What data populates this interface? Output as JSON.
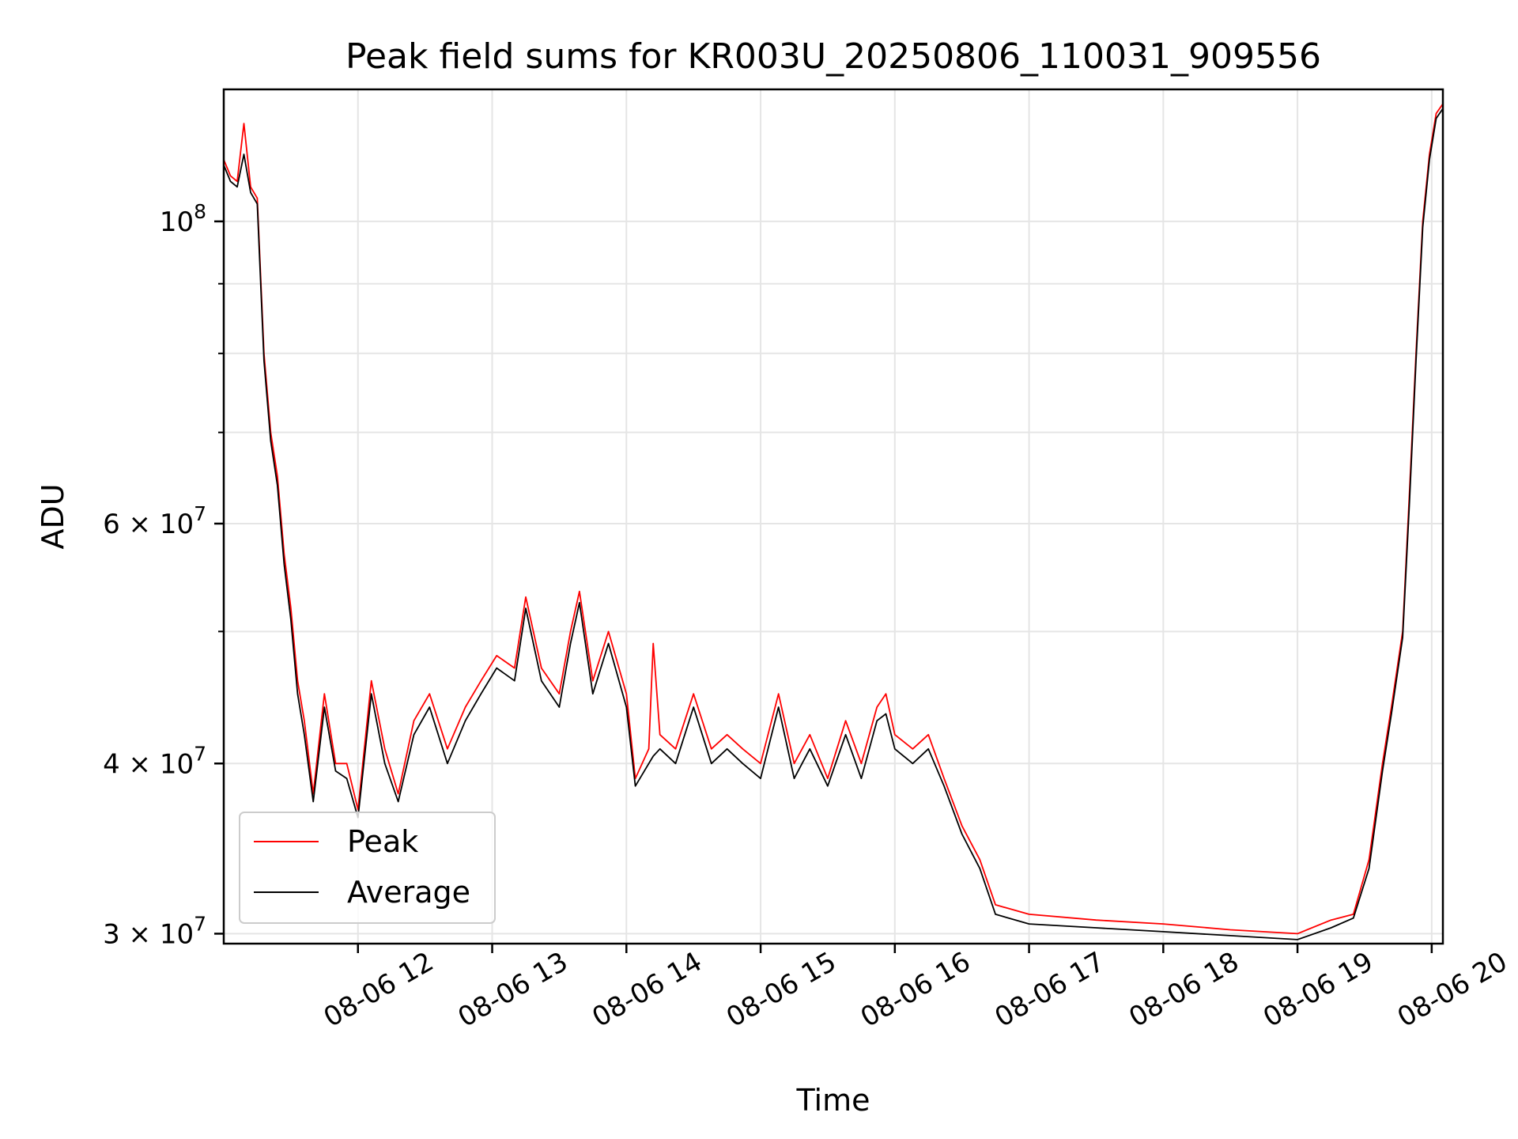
{
  "chart_data": {
    "type": "line",
    "title": "Peak field sums for KR003U_20250806_110031_909556",
    "xlabel": "Time",
    "ylabel": "ADU",
    "y_scale": "log",
    "x_range": [
      "2025-08-06 11:00",
      "2025-08-06 20:05"
    ],
    "ylim": [
      29500000,
      125000000
    ],
    "grid": true,
    "legend_position": "lower-left",
    "x_tick_labels": [
      "08-06 12",
      "08-06 13",
      "08-06 14",
      "08-06 15",
      "08-06 16",
      "08-06 17",
      "08-06 18",
      "08-06 19",
      "08-06 20"
    ],
    "x_ticks": [
      "2025-08-06 12:00",
      "2025-08-06 13:00",
      "2025-08-06 14:00",
      "2025-08-06 15:00",
      "2025-08-06 16:00",
      "2025-08-06 17:00",
      "2025-08-06 18:00",
      "2025-08-06 19:00",
      "2025-08-06 20:00"
    ],
    "y_ticks": [
      {
        "value": 100000000,
        "base": "10",
        "exp": "8"
      },
      {
        "value": 60000000,
        "mant": "6",
        "base": "10",
        "exp": "7"
      },
      {
        "value": 40000000,
        "mant": "4",
        "base": "10",
        "exp": "7"
      },
      {
        "value": 30000000,
        "mant": "3",
        "base": "10",
        "exp": "7"
      }
    ],
    "y_minor_ticks": [
      50000000,
      70000000,
      80000000,
      90000000
    ],
    "series": [
      {
        "name": "Peak",
        "color": "#ff0000",
        "points": [
          [
            "2025-08-06 11:00",
            111000000
          ],
          [
            "2025-08-06 11:03",
            108000000
          ],
          [
            "2025-08-06 11:06",
            107000000
          ],
          [
            "2025-08-06 11:09",
            118000000
          ],
          [
            "2025-08-06 11:12",
            106000000
          ],
          [
            "2025-08-06 11:15",
            104000000
          ],
          [
            "2025-08-06 11:18",
            80000000
          ],
          [
            "2025-08-06 11:21",
            70000000
          ],
          [
            "2025-08-06 11:24",
            65000000
          ],
          [
            "2025-08-06 11:27",
            57000000
          ],
          [
            "2025-08-06 11:30",
            52000000
          ],
          [
            "2025-08-06 11:33",
            46000000
          ],
          [
            "2025-08-06 11:36",
            43000000
          ],
          [
            "2025-08-06 11:40",
            38000000
          ],
          [
            "2025-08-06 11:45",
            45000000
          ],
          [
            "2025-08-06 11:50",
            40000000
          ],
          [
            "2025-08-06 11:55",
            40000000
          ],
          [
            "2025-08-06 12:00",
            37000000
          ],
          [
            "2025-08-06 12:06",
            46000000
          ],
          [
            "2025-08-06 12:12",
            41000000
          ],
          [
            "2025-08-06 12:18",
            38000000
          ],
          [
            "2025-08-06 12:25",
            43000000
          ],
          [
            "2025-08-06 12:32",
            45000000
          ],
          [
            "2025-08-06 12:40",
            41000000
          ],
          [
            "2025-08-06 12:48",
            44000000
          ],
          [
            "2025-08-06 12:55",
            46000000
          ],
          [
            "2025-08-06 13:02",
            48000000
          ],
          [
            "2025-08-06 13:10",
            47000000
          ],
          [
            "2025-08-06 13:15",
            53000000
          ],
          [
            "2025-08-06 13:22",
            47000000
          ],
          [
            "2025-08-06 13:30",
            45000000
          ],
          [
            "2025-08-06 13:35",
            50000000
          ],
          [
            "2025-08-06 13:39",
            53500000
          ],
          [
            "2025-08-06 13:45",
            46000000
          ],
          [
            "2025-08-06 13:52",
            50000000
          ],
          [
            "2025-08-06 14:00",
            45000000
          ],
          [
            "2025-08-06 14:04",
            39000000
          ],
          [
            "2025-08-06 14:10",
            41000000
          ],
          [
            "2025-08-06 14:12",
            49000000
          ],
          [
            "2025-08-06 14:15",
            42000000
          ],
          [
            "2025-08-06 14:22",
            41000000
          ],
          [
            "2025-08-06 14:30",
            45000000
          ],
          [
            "2025-08-06 14:38",
            41000000
          ],
          [
            "2025-08-06 14:45",
            42000000
          ],
          [
            "2025-08-06 14:52",
            41000000
          ],
          [
            "2025-08-06 15:00",
            40000000
          ],
          [
            "2025-08-06 15:08",
            45000000
          ],
          [
            "2025-08-06 15:15",
            40000000
          ],
          [
            "2025-08-06 15:22",
            42000000
          ],
          [
            "2025-08-06 15:30",
            39000000
          ],
          [
            "2025-08-06 15:38",
            43000000
          ],
          [
            "2025-08-06 15:45",
            40000000
          ],
          [
            "2025-08-06 15:52",
            44000000
          ],
          [
            "2025-08-06 15:56",
            45000000
          ],
          [
            "2025-08-06 16:00",
            42000000
          ],
          [
            "2025-08-06 16:08",
            41000000
          ],
          [
            "2025-08-06 16:15",
            42000000
          ],
          [
            "2025-08-06 16:22",
            39000000
          ],
          [
            "2025-08-06 16:30",
            36000000
          ],
          [
            "2025-08-06 16:38",
            34000000
          ],
          [
            "2025-08-06 16:45",
            31500000
          ],
          [
            "2025-08-06 17:00",
            31000000
          ],
          [
            "2025-08-06 17:30",
            30700000
          ],
          [
            "2025-08-06 18:00",
            30500000
          ],
          [
            "2025-08-06 18:30",
            30200000
          ],
          [
            "2025-08-06 19:00",
            30000000
          ],
          [
            "2025-08-06 19:15",
            30700000
          ],
          [
            "2025-08-06 19:25",
            31000000
          ],
          [
            "2025-08-06 19:32",
            34000000
          ],
          [
            "2025-08-06 19:38",
            40000000
          ],
          [
            "2025-08-06 19:42",
            44000000
          ],
          [
            "2025-08-06 19:47",
            50000000
          ],
          [
            "2025-08-06 19:50",
            63000000
          ],
          [
            "2025-08-06 19:53",
            80000000
          ],
          [
            "2025-08-06 19:56",
            100000000
          ],
          [
            "2025-08-06 19:59",
            112000000
          ],
          [
            "2025-08-06 20:02",
            120000000
          ],
          [
            "2025-08-06 20:05",
            122000000
          ]
        ]
      },
      {
        "name": "Average",
        "color": "#000000",
        "points": [
          [
            "2025-08-06 11:00",
            110000000
          ],
          [
            "2025-08-06 11:03",
            107000000
          ],
          [
            "2025-08-06 11:06",
            106000000
          ],
          [
            "2025-08-06 11:09",
            112000000
          ],
          [
            "2025-08-06 11:12",
            105000000
          ],
          [
            "2025-08-06 11:15",
            103000000
          ],
          [
            "2025-08-06 11:18",
            79000000
          ],
          [
            "2025-08-06 11:21",
            69000000
          ],
          [
            "2025-08-06 11:24",
            64000000
          ],
          [
            "2025-08-06 11:27",
            56000000
          ],
          [
            "2025-08-06 11:30",
            51000000
          ],
          [
            "2025-08-06 11:33",
            45000000
          ],
          [
            "2025-08-06 11:36",
            42000000
          ],
          [
            "2025-08-06 11:40",
            37500000
          ],
          [
            "2025-08-06 11:45",
            44000000
          ],
          [
            "2025-08-06 11:50",
            39500000
          ],
          [
            "2025-08-06 11:55",
            39000000
          ],
          [
            "2025-08-06 12:00",
            36500000
          ],
          [
            "2025-08-06 12:06",
            45000000
          ],
          [
            "2025-08-06 12:12",
            40000000
          ],
          [
            "2025-08-06 12:18",
            37500000
          ],
          [
            "2025-08-06 12:25",
            42000000
          ],
          [
            "2025-08-06 12:32",
            44000000
          ],
          [
            "2025-08-06 12:40",
            40000000
          ],
          [
            "2025-08-06 12:48",
            43000000
          ],
          [
            "2025-08-06 12:55",
            45000000
          ],
          [
            "2025-08-06 13:02",
            47000000
          ],
          [
            "2025-08-06 13:10",
            46000000
          ],
          [
            "2025-08-06 13:15",
            52000000
          ],
          [
            "2025-08-06 13:22",
            46000000
          ],
          [
            "2025-08-06 13:30",
            44000000
          ],
          [
            "2025-08-06 13:35",
            49000000
          ],
          [
            "2025-08-06 13:39",
            52500000
          ],
          [
            "2025-08-06 13:45",
            45000000
          ],
          [
            "2025-08-06 13:52",
            49000000
          ],
          [
            "2025-08-06 14:00",
            44000000
          ],
          [
            "2025-08-06 14:04",
            38500000
          ],
          [
            "2025-08-06 14:10",
            40000000
          ],
          [
            "2025-08-06 14:12",
            40500000
          ],
          [
            "2025-08-06 14:15",
            41000000
          ],
          [
            "2025-08-06 14:22",
            40000000
          ],
          [
            "2025-08-06 14:30",
            44000000
          ],
          [
            "2025-08-06 14:38",
            40000000
          ],
          [
            "2025-08-06 14:45",
            41000000
          ],
          [
            "2025-08-06 14:52",
            40000000
          ],
          [
            "2025-08-06 15:00",
            39000000
          ],
          [
            "2025-08-06 15:08",
            44000000
          ],
          [
            "2025-08-06 15:15",
            39000000
          ],
          [
            "2025-08-06 15:22",
            41000000
          ],
          [
            "2025-08-06 15:30",
            38500000
          ],
          [
            "2025-08-06 15:38",
            42000000
          ],
          [
            "2025-08-06 15:45",
            39000000
          ],
          [
            "2025-08-06 15:52",
            43000000
          ],
          [
            "2025-08-06 15:56",
            43500000
          ],
          [
            "2025-08-06 16:00",
            41000000
          ],
          [
            "2025-08-06 16:08",
            40000000
          ],
          [
            "2025-08-06 16:15",
            41000000
          ],
          [
            "2025-08-06 16:22",
            38500000
          ],
          [
            "2025-08-06 16:30",
            35500000
          ],
          [
            "2025-08-06 16:38",
            33500000
          ],
          [
            "2025-08-06 16:45",
            31000000
          ],
          [
            "2025-08-06 17:00",
            30500000
          ],
          [
            "2025-08-06 17:30",
            30300000
          ],
          [
            "2025-08-06 18:00",
            30100000
          ],
          [
            "2025-08-06 18:30",
            29900000
          ],
          [
            "2025-08-06 19:00",
            29700000
          ],
          [
            "2025-08-06 19:15",
            30300000
          ],
          [
            "2025-08-06 19:25",
            30800000
          ],
          [
            "2025-08-06 19:32",
            33500000
          ],
          [
            "2025-08-06 19:38",
            39500000
          ],
          [
            "2025-08-06 19:42",
            43500000
          ],
          [
            "2025-08-06 19:47",
            49500000
          ],
          [
            "2025-08-06 19:50",
            62000000
          ],
          [
            "2025-08-06 19:53",
            79000000
          ],
          [
            "2025-08-06 19:56",
            99000000
          ],
          [
            "2025-08-06 19:59",
            111000000
          ],
          [
            "2025-08-06 20:02",
            119000000
          ],
          [
            "2025-08-06 20:05",
            121000000
          ]
        ]
      }
    ]
  }
}
